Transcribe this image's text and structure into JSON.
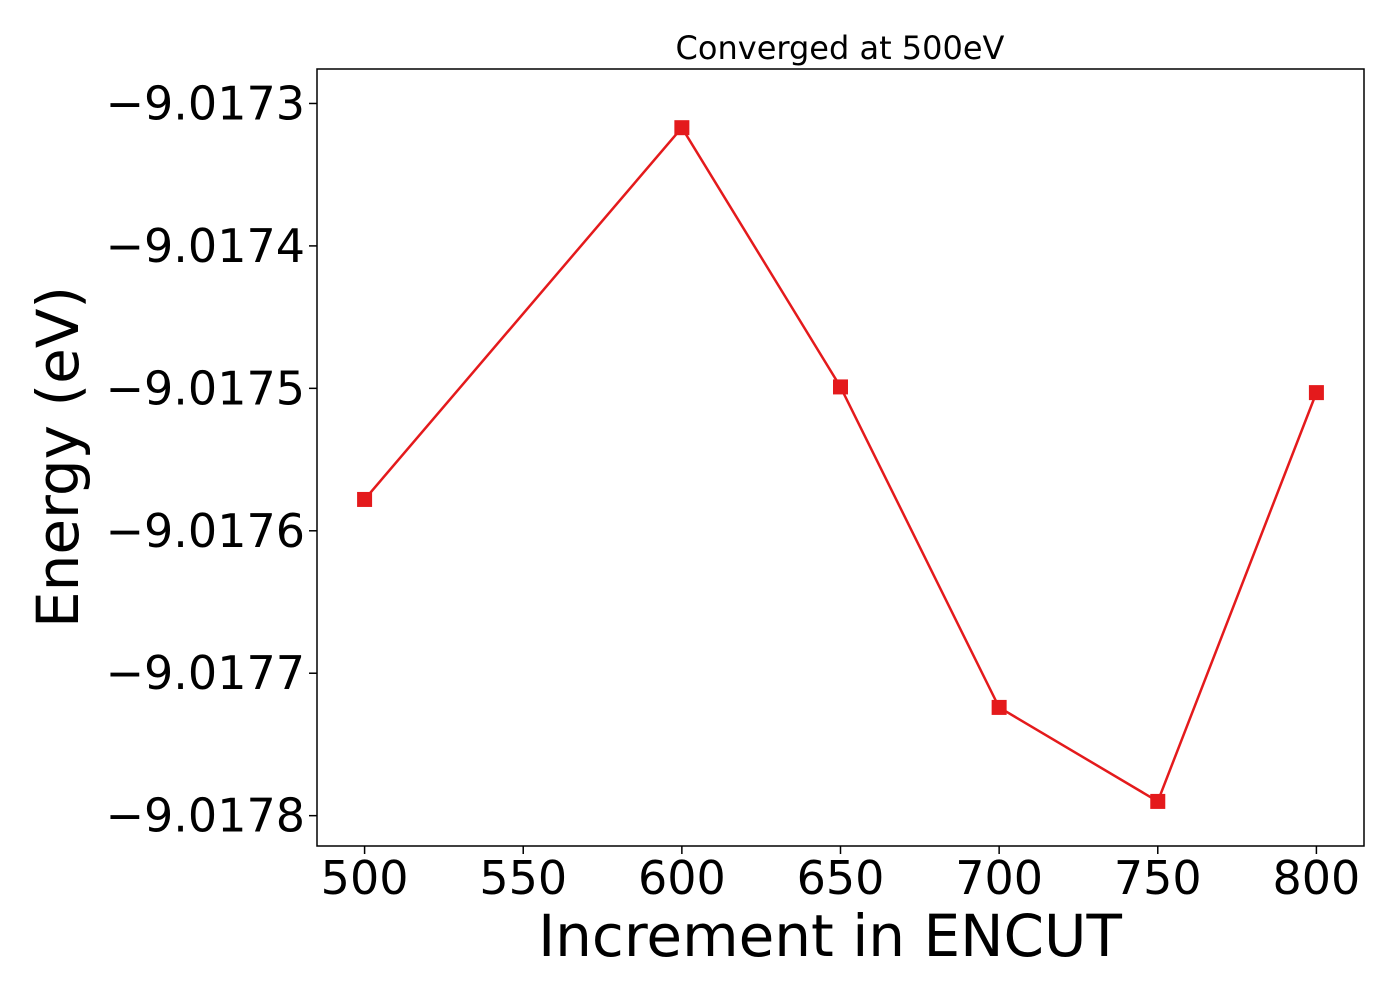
{
  "chart_data": {
    "type": "line",
    "title": "Converged at 500eV",
    "xlabel": "Increment in ENCUT",
    "ylabel": "Energy (eV)",
    "x": [
      500,
      600,
      650,
      700,
      750,
      800
    ],
    "series": [
      {
        "values": [
          -9.017578,
          -9.017317,
          -9.017499,
          -9.017724,
          -9.01779,
          -9.017503
        ],
        "color": "#e41a1c",
        "marker": "square"
      }
    ],
    "xticks": [
      500,
      550,
      600,
      650,
      700,
      750,
      800
    ],
    "xtick_labels": [
      "500",
      "550",
      "600",
      "650",
      "700",
      "750",
      "800"
    ],
    "yticks": [
      -9.0173,
      -9.0174,
      -9.0175,
      -9.0176,
      -9.0177,
      -9.0178
    ],
    "ytick_labels": [
      "−9.0173",
      "−9.0174",
      "−9.0175",
      "−9.0176",
      "−9.0177",
      "−9.0178"
    ],
    "xlim": [
      485,
      815
    ],
    "ylim": [
      -9.0178213,
      -9.0172758
    ],
    "grid": false,
    "legend": "none"
  }
}
